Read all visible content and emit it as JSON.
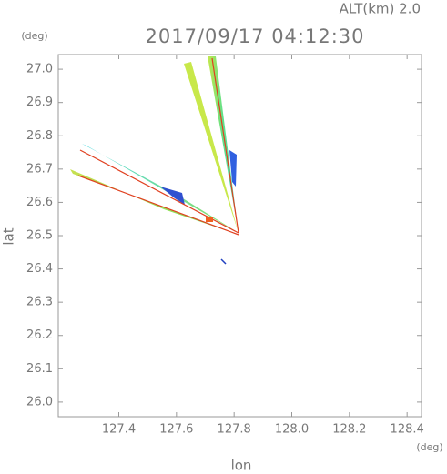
{
  "chart_data": {
    "type": "radar-map",
    "title": "2017/09/17 04:12:30",
    "subtitle": "ALT(km) 2.0",
    "x_label": "lon",
    "y_label": "lat",
    "x_unit": "(deg)",
    "y_unit": "(deg)",
    "xlim": [
      127.19,
      128.45
    ],
    "ylim": [
      25.956,
      27.044
    ],
    "xticks": [
      127.4,
      127.6,
      127.8,
      {
        "value": 128.0,
        "label": "128.0"
      },
      128.2,
      128.4
    ],
    "yticks": [
      {
        "value": 26.0,
        "label": "26.0"
      },
      26.1,
      26.2,
      26.3,
      26.4,
      26.5,
      26.6,
      26.7,
      26.8,
      26.9,
      {
        "value": 27.0,
        "label": "27.0"
      }
    ]
  }
}
